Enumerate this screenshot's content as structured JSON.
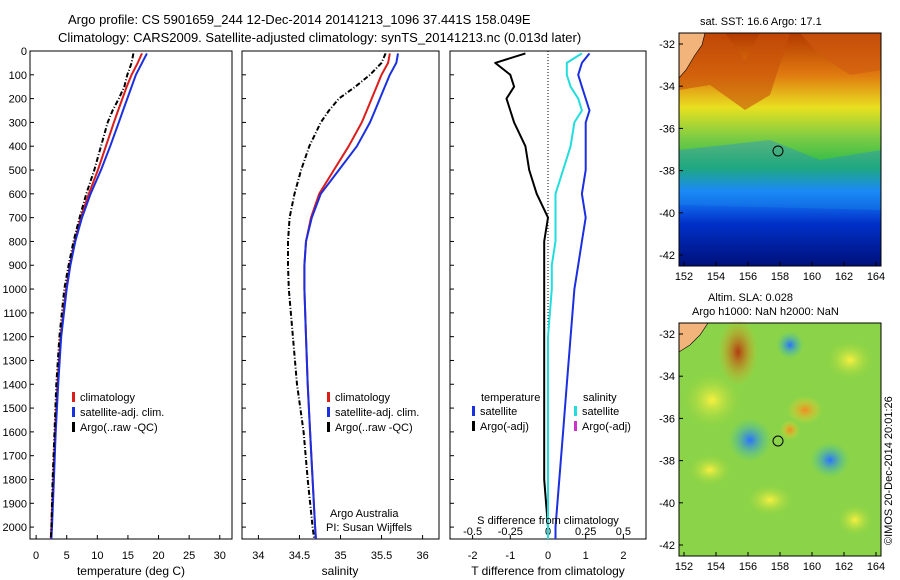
{
  "header": {
    "line1": "Argo profile: CS 5901659_244 12-Dec-2014 20141213_1096 37.441S 158.049E",
    "line2": "Climatology: CARS2009. Satellite-adjusted climatology: synTS_20141213.nc (0.013d later)"
  },
  "colors": {
    "climatology": "#dd1c1c",
    "satellite": "#1a2fe0",
    "argo": "#000000",
    "sat_salinity": "#22dddd",
    "argo_adj": "#cc33cc"
  },
  "depth_axis": {
    "ticks": [
      0,
      100,
      200,
      300,
      400,
      500,
      600,
      700,
      800,
      900,
      1000,
      1100,
      1200,
      1300,
      1400,
      1500,
      1600,
      1700,
      1800,
      1900,
      2000
    ],
    "ylim": [
      0,
      2050
    ]
  },
  "chart_data": [
    {
      "type": "line",
      "panel": "temperature",
      "xlabel": "temperature (deg C)",
      "xlim": [
        -1,
        32
      ],
      "xticks": [
        "0",
        "5",
        "10",
        "15",
        "20",
        "25",
        "30"
      ],
      "y": [
        10,
        50,
        100,
        150,
        200,
        250,
        300,
        400,
        500,
        600,
        700,
        800,
        900,
        1000,
        1200,
        1400,
        1600,
        1800,
        2000,
        2050
      ],
      "series": [
        {
          "name": "climatology",
          "values": [
            17.3,
            16.6,
            15.6,
            14.8,
            14.1,
            13.4,
            12.7,
            11.4,
            10.1,
            8.6,
            7.3,
            6.3,
            5.5,
            4.9,
            4.0,
            3.5,
            3.1,
            2.8,
            2.5,
            2.4
          ]
        },
        {
          "name": "satellite-adj. clim.",
          "values": [
            18.1,
            17.3,
            16.3,
            15.6,
            14.9,
            14.2,
            13.5,
            12.1,
            10.6,
            8.9,
            7.5,
            6.4,
            5.6,
            5.0,
            4.1,
            3.6,
            3.2,
            2.9,
            2.6,
            2.5
          ]
        },
        {
          "name": "Argo(..raw -QC)",
          "values": [
            15.9,
            15.6,
            14.9,
            14.4,
            13.5,
            12.5,
            11.7,
            10.6,
            9.5,
            8.2,
            7.1,
            6.1,
            5.3,
            4.6,
            3.8,
            3.3,
            3.0,
            2.7,
            2.5,
            2.4
          ]
        }
      ],
      "legend": {
        "position": "lower-center",
        "items": [
          "climatology",
          "satellite-adj. clim.",
          "Argo(..raw -QC)"
        ]
      }
    },
    {
      "type": "line",
      "panel": "salinity",
      "xlabel": "salinity",
      "xlim": [
        33.8,
        36.2
      ],
      "xticks": [
        "34",
        "34.5",
        "35",
        "35.5",
        "36"
      ],
      "y": [
        10,
        50,
        100,
        150,
        200,
        250,
        300,
        400,
        500,
        600,
        700,
        800,
        900,
        1000,
        1200,
        1400,
        1600,
        1800,
        2000,
        2050
      ],
      "series": [
        {
          "name": "climatology",
          "values": [
            35.6,
            35.58,
            35.5,
            35.44,
            35.38,
            35.32,
            35.26,
            35.1,
            34.92,
            34.74,
            34.64,
            34.58,
            34.56,
            34.56,
            34.58,
            34.6,
            34.63,
            34.66,
            34.69,
            34.7
          ]
        },
        {
          "name": "satellite-adj. clim.",
          "values": [
            35.7,
            35.68,
            35.6,
            35.54,
            35.48,
            35.42,
            35.36,
            35.2,
            34.98,
            34.76,
            34.65,
            34.58,
            34.56,
            34.56,
            34.58,
            34.6,
            34.63,
            34.66,
            34.69,
            34.7
          ]
        },
        {
          "name": "Argo(..raw -QC)",
          "values": [
            35.55,
            35.5,
            35.36,
            35.18,
            34.98,
            34.86,
            34.76,
            34.62,
            34.52,
            34.44,
            34.38,
            34.36,
            34.36,
            34.37,
            34.42,
            34.47,
            34.55,
            34.6,
            34.66,
            34.68
          ]
        }
      ],
      "legend": {
        "position": "lower-center",
        "items": [
          "climatology",
          "satellite-adj. clim.",
          "Argo(..raw -QC)"
        ]
      },
      "annotations": [
        "Argo Australia",
        "PI: Susan Wijffels"
      ]
    },
    {
      "type": "line",
      "panel": "difference",
      "xlabel_top": "S difference from climatology",
      "xlabel": "T difference from climatology",
      "xlim": [
        -2.6,
        2.6
      ],
      "xticks": [
        "-2",
        "-1",
        "0",
        "1",
        "2"
      ],
      "top_ticks": [
        "-0.5",
        "-0.25",
        "0",
        "0.25",
        "0.5"
      ],
      "y": [
        10,
        50,
        100,
        150,
        200,
        250,
        300,
        400,
        500,
        600,
        700,
        800,
        900,
        1000,
        1200,
        1400,
        1600,
        1800,
        2000,
        2050
      ],
      "series": [
        {
          "name": "temperature satellite",
          "values": [
            1.1,
            0.9,
            0.8,
            0.9,
            1.0,
            1.1,
            1.0,
            1.0,
            1.0,
            0.9,
            1.0,
            0.9,
            0.8,
            0.7,
            0.6,
            0.5,
            0.4,
            0.3,
            0.2,
            0.2
          ]
        },
        {
          "name": "temperature Argo(-adj)",
          "values": [
            -0.6,
            -1.4,
            -1.0,
            -0.9,
            -1.1,
            -1.0,
            -0.9,
            -0.6,
            -0.5,
            -0.3,
            0.0,
            -0.1,
            -0.1,
            -0.1,
            -0.1,
            -0.1,
            -0.1,
            -0.1,
            0.0,
            0.0
          ]
        },
        {
          "name": "salinity satellite",
          "values": [
            0.9,
            0.5,
            0.5,
            0.6,
            0.8,
            0.9,
            0.7,
            0.6,
            0.4,
            0.2,
            0.2,
            0.2,
            0.1,
            0.1,
            0.0,
            0.0,
            0.0,
            0.0,
            0.0,
            0.0
          ]
        },
        {
          "name": "salinity Argo(-adj)",
          "values": []
        }
      ],
      "legend": {
        "position": "lower-center",
        "col_titles": [
          "temperature",
          "salinity"
        ],
        "items": [
          "satellite",
          "Argo(-adj)",
          "satellite",
          "Argo(-adj)"
        ]
      }
    }
  ],
  "maps": [
    {
      "title": "sat. SST: 16.6 Argo: 17.1",
      "yticks": [
        "-32",
        "-34",
        "-36",
        "-38",
        "-40",
        "-42"
      ],
      "xticks": [
        "152",
        "154",
        "156",
        "158",
        "160",
        "162",
        "164"
      ]
    },
    {
      "title_line1": "Altim. SLA: 0.028",
      "title_line2": "Argo h1000: NaN h2000: NaN",
      "yticks": [
        "-32",
        "-34",
        "-36",
        "-38",
        "-40",
        "-42"
      ],
      "xticks": [
        "152",
        "154",
        "156",
        "158",
        "160",
        "162",
        "164"
      ]
    }
  ],
  "footer": {
    "credit": "©IMOS 20-Dec-2014 20:01:26"
  }
}
